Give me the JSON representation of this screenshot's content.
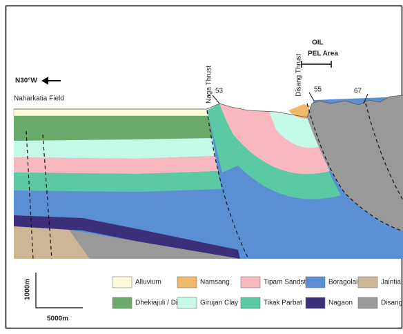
{
  "header": {
    "direction": "N30°W",
    "field": "Naharkatia Field"
  },
  "annotations": {
    "naga": "Naga Thrust",
    "disang": "Disang Thrust",
    "oil": "OIL",
    "pel": "PEL Area",
    "dips": [
      "53",
      "55",
      "67"
    ]
  },
  "scale": {
    "vertical": "1000m",
    "horizontal": "5000m"
  },
  "legend": [
    {
      "label": "Alluvium",
      "color": "#fdfbd9"
    },
    {
      "label": "Namsang",
      "color": "#f0b96a"
    },
    {
      "label": "Tipam Sandstone",
      "color": "#f9b8bf"
    },
    {
      "label": "Boragolai",
      "color": "#5b8fd4"
    },
    {
      "label": "Jaintia Group",
      "color": "#cdb595"
    },
    {
      "label": "Dhekiajuli / Dihing",
      "color": "#6aab6b"
    },
    {
      "label": "Girujan Clay",
      "color": "#c5f9e9"
    },
    {
      "label": "Tikak Parbat",
      "color": "#5cc9a5"
    },
    {
      "label": "Nagaon",
      "color": "#3b2f7a"
    },
    {
      "label": "Disang",
      "color": "#999999"
    }
  ]
}
